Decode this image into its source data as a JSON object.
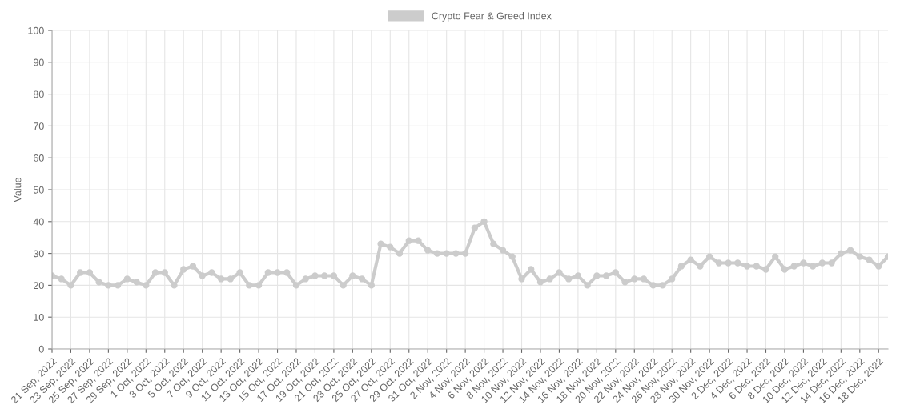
{
  "chart_data": {
    "type": "line",
    "ylabel": "Value",
    "categories": [
      "21 Sep, 2022",
      null,
      "23 Sep, 2022",
      null,
      "25 Sep, 2022",
      null,
      "27 Sep, 2022",
      null,
      "29 Sep, 2022",
      null,
      "1 Oct, 2022",
      null,
      "3 Oct, 2022",
      null,
      "5 Oct, 2022",
      null,
      "7 Oct, 2022",
      null,
      "9 Oct, 2022",
      null,
      "11 Oct, 2022",
      null,
      "13 Oct, 2022",
      null,
      "15 Oct, 2022",
      null,
      "17 Oct, 2022",
      null,
      "19 Oct, 2022",
      null,
      "21 Oct, 2022",
      null,
      "23 Oct, 2022",
      null,
      "25 Oct, 2022",
      null,
      "27 Oct, 2022",
      null,
      "29 Oct, 2022",
      null,
      "31 Oct, 2022",
      null,
      "2 Nov, 2022",
      null,
      "4 Nov, 2022",
      null,
      "6 Nov, 2022",
      null,
      "8 Nov, 2022",
      null,
      "10 Nov, 2022",
      null,
      "12 Nov, 2022",
      null,
      "14 Nov, 2022",
      null,
      "16 Nov, 2022",
      null,
      "18 Nov, 2022",
      null,
      "20 Nov, 2022",
      null,
      "22 Nov, 2022",
      null,
      "24 Nov, 2022",
      null,
      "26 Nov, 2022",
      null,
      "28 Nov, 2022",
      null,
      "30 Nov, 2022",
      null,
      "2 Dec, 2022",
      null,
      "4 Dec, 2022",
      null,
      "6 Dec, 2022",
      null,
      "8 Dec, 2022",
      null,
      "10 Dec, 2022",
      null,
      "12 Dec, 2022",
      null,
      "14 Dec, 2022",
      null,
      "16 Dec, 2022",
      null,
      "18 Dec, 2022",
      null
    ],
    "series": [
      {
        "name": "Crypto Fear & Greed Index",
        "color": "#cccccc",
        "values": [
          23,
          22,
          20,
          24,
          24,
          21,
          20,
          20,
          22,
          21,
          20,
          24,
          24,
          20,
          25,
          26,
          23,
          24,
          22,
          22,
          24,
          20,
          20,
          24,
          24,
          24,
          20,
          22,
          23,
          23,
          23,
          20,
          23,
          22,
          20,
          33,
          32,
          30,
          34,
          34,
          31,
          30,
          30,
          30,
          30,
          38,
          40,
          33,
          31,
          29,
          22,
          25,
          21,
          22,
          24,
          22,
          23,
          20,
          23,
          23,
          24,
          21,
          22,
          22,
          20,
          20,
          22,
          26,
          28,
          26,
          29,
          27,
          27,
          27,
          26,
          26,
          25,
          29,
          25,
          26,
          27,
          26,
          27,
          27,
          30,
          31,
          29,
          28,
          26,
          29
        ]
      }
    ],
    "ylim": [
      0,
      100
    ],
    "yticks": [
      0,
      10,
      20,
      30,
      40,
      50,
      60,
      70,
      80,
      90,
      100
    ],
    "grid": true,
    "legend": "top",
    "marker": "circle",
    "line_style": "solid"
  }
}
